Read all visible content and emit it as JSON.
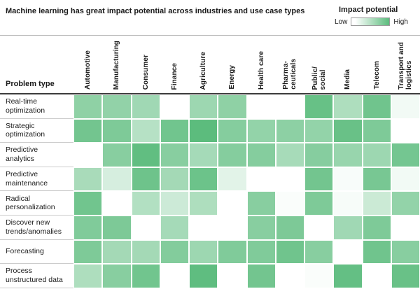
{
  "header": {
    "title": "Machine learning has great impact potential across industries and use case types"
  },
  "legend": {
    "title": "Impact potential",
    "low_label": "Low",
    "high_label": "High"
  },
  "chart_data": {
    "type": "heatmap",
    "title": "Machine learning has great impact potential across industries and use case types",
    "row_axis_label": "Problem type",
    "legend": {
      "title": "Impact potential",
      "low": "Low",
      "high": "High",
      "position": "top-right"
    },
    "color_low": "#ffffff",
    "color_high": "#5cbc7d",
    "value_scale": "0 = low impact potential (white) to 100 = high impact potential (dark green), estimated from cell shading",
    "columns": [
      "Automotive",
      "Manufacturing",
      "Consumer",
      "Finance",
      "Agriculture",
      "Energy",
      "Health care",
      "Pharma-\nceuticals",
      "Public/\nsocial",
      "Media",
      "Telecom",
      "Transport and\nlogistics"
    ],
    "rows": [
      "Real-time\noptimization",
      "Strategic\noptimization",
      "Predictive\nanalytics",
      "Predictive\nmaintenance",
      "Radical\npersonalization",
      "Discover new\ntrends/anomalies",
      "Forecasting",
      "Process\nunstructured data"
    ],
    "values": [
      [
        69,
        67,
        58,
        0,
        60,
        69,
        0,
        0,
        93,
        50,
        88,
        8
      ],
      [
        86,
        79,
        45,
        87,
        100,
        75,
        66,
        70,
        66,
        92,
        79,
        0
      ],
      [
        0,
        73,
        97,
        73,
        55,
        75,
        75,
        54,
        74,
        63,
        60,
        85
      ],
      [
        53,
        25,
        89,
        56,
        90,
        18,
        0,
        0,
        86,
        4,
        83,
        8
      ],
      [
        87,
        0,
        47,
        31,
        50,
        0,
        73,
        3,
        79,
        5,
        32,
        66
      ],
      [
        78,
        80,
        0,
        55,
        0,
        0,
        73,
        80,
        0,
        58,
        79,
        0
      ],
      [
        79,
        56,
        56,
        76,
        60,
        78,
        78,
        88,
        73,
        0,
        88,
        73
      ],
      [
        50,
        73,
        87,
        0,
        98,
        0,
        86,
        0,
        3,
        95,
        0,
        92
      ]
    ]
  }
}
